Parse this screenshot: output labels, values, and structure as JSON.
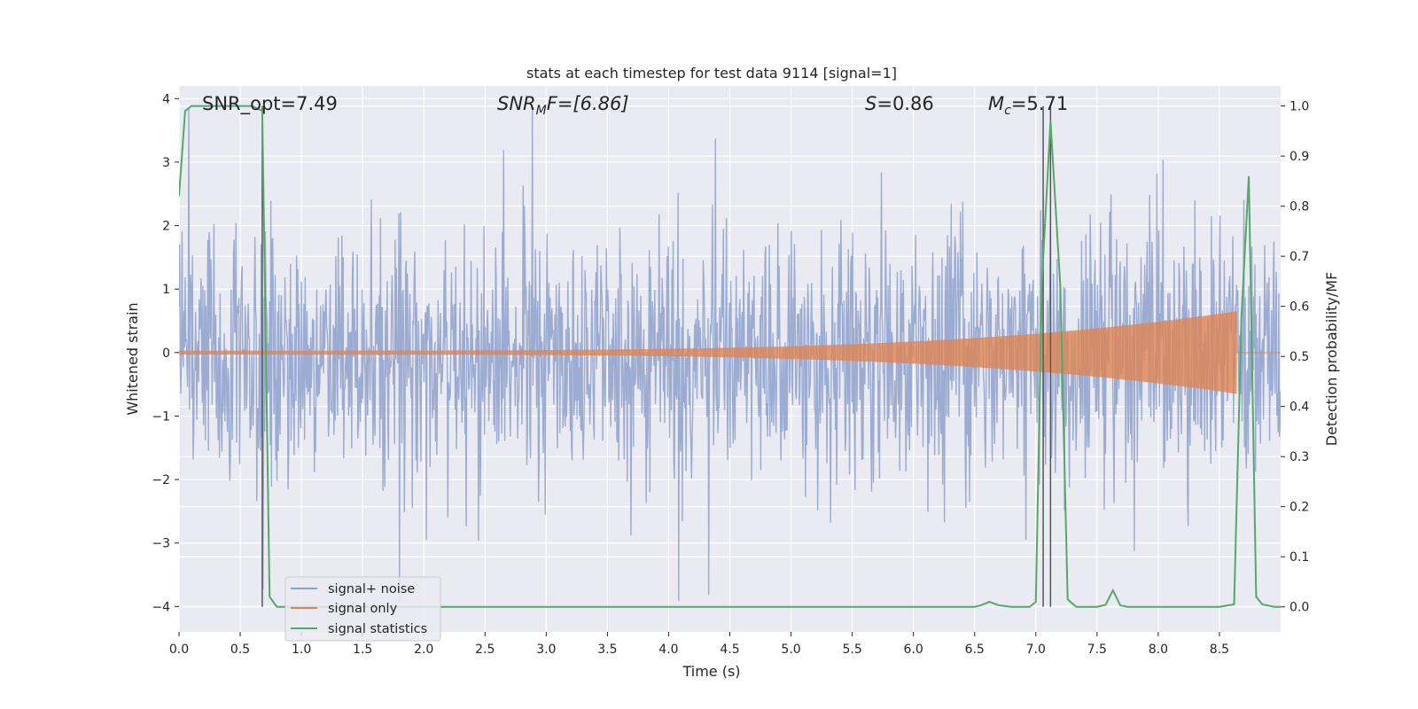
{
  "chart_data": {
    "type": "line",
    "title": "stats at each timestep for test data 9114 [signal=1]",
    "xlabel": "Time (s)",
    "ylabel": "Whitened strain",
    "y2label": "Detection probability/MF",
    "xlim": [
      0.0,
      9.0
    ],
    "ylim": [
      -4.4,
      4.2
    ],
    "y2lim": [
      -0.05,
      1.04
    ],
    "xticks": [
      0.0,
      0.5,
      1.0,
      1.5,
      2.0,
      2.5,
      3.0,
      3.5,
      4.0,
      4.5,
      5.0,
      5.5,
      6.0,
      6.5,
      7.0,
      7.5,
      8.0,
      8.5
    ],
    "xtick_labels": [
      "0.0",
      "0.5",
      "1.0",
      "1.5",
      "2.0",
      "2.5",
      "3.0",
      "3.5",
      "4.0",
      "4.5",
      "5.0",
      "5.5",
      "6.0",
      "6.5",
      "7.0",
      "7.5",
      "8.0",
      "8.5"
    ],
    "yticks": [
      -4,
      -3,
      -2,
      -1,
      0,
      1,
      2,
      3,
      4
    ],
    "ytick_labels": [
      "−4",
      "−3",
      "−2",
      "−1",
      "0",
      "1",
      "2",
      "3",
      "4"
    ],
    "y2ticks": [
      0.0,
      0.1,
      0.2,
      0.3,
      0.4,
      0.5,
      0.6,
      0.7,
      0.8,
      0.9,
      1.0
    ],
    "y2tick_labels": [
      "0.0",
      "0.1",
      "0.2",
      "0.3",
      "0.4",
      "0.5",
      "0.6",
      "0.7",
      "0.8",
      "0.9",
      "1.0"
    ],
    "grid": true,
    "legend_position": "lower-left",
    "annotations": {
      "snr_opt": {
        "prefix": "SNR_opt=",
        "value": "7.49"
      },
      "snr_mf": {
        "main": "SNR",
        "sub": "M",
        "suffix": "F=[6.86]"
      },
      "s": {
        "main": "S",
        "suffix": "=0.86"
      },
      "mc": {
        "main": "M",
        "sub": "c",
        "suffix": "=5.71"
      }
    },
    "series": [
      {
        "name": "signal+ noise",
        "color": "#8da0cb",
        "kind": "noise",
        "noise_sigma": 1.0,
        "n_samples": 1800,
        "seed": 9114
      },
      {
        "name": "signal only",
        "color": "#dd8452",
        "kind": "chirp",
        "start_amp": 0.03,
        "end_amp": 0.65,
        "end_time": 8.64
      },
      {
        "name": "signal statistics",
        "color": "#55a868",
        "kind": "line",
        "axis": "right",
        "x": [
          0.0,
          0.05,
          0.1,
          0.2,
          0.3,
          0.4,
          0.5,
          0.6,
          0.68,
          0.74,
          0.8,
          0.9,
          1.0,
          2.0,
          3.0,
          4.0,
          5.0,
          6.0,
          6.5,
          6.55,
          6.62,
          6.7,
          6.8,
          6.95,
          7.0,
          7.05,
          7.12,
          7.2,
          7.26,
          7.33,
          7.5,
          7.57,
          7.63,
          7.69,
          7.75,
          8.0,
          8.5,
          8.62,
          8.68,
          8.74,
          8.8,
          8.85,
          8.95,
          9.0
        ],
        "y": [
          0.82,
          0.99,
          1.0,
          1.0,
          1.0,
          1.0,
          1.0,
          1.0,
          0.99,
          0.02,
          0.0,
          0.0,
          0.0,
          0.0,
          0.0,
          0.0,
          0.0,
          0.0,
          0.0,
          0.003,
          0.01,
          0.003,
          0.0,
          0.0,
          0.01,
          0.65,
          0.97,
          0.64,
          0.015,
          0.0,
          0.0,
          0.004,
          0.033,
          0.003,
          0.0,
          0.0,
          0.0,
          0.005,
          0.58,
          0.86,
          0.02,
          0.005,
          0.0,
          0.0
        ]
      }
    ],
    "vlines": [
      {
        "x": 0.68,
        "color": "#555555"
      },
      {
        "x": 7.06,
        "color": "#555555"
      },
      {
        "x": 7.12,
        "color": "#555555"
      }
    ]
  }
}
